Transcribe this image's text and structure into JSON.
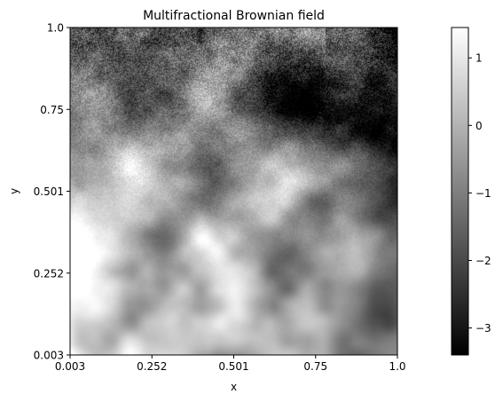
{
  "chart_data": {
    "type": "heatmap",
    "title": "Multifractional Brownian field",
    "xlabel": "x",
    "ylabel": "y",
    "xlim": [
      0.003,
      1.0
    ],
    "ylim": [
      0.003,
      1.0
    ],
    "x_ticks": [
      "0.003",
      "0.252",
      "0.501",
      "0.75",
      "1.0"
    ],
    "y_ticks": [
      "0.003",
      "0.252",
      "0.501",
      "0.75",
      "1.0"
    ],
    "colormap": "gray",
    "colorbar": {
      "range": [
        -3.4,
        1.45
      ],
      "ticks": [
        1,
        0,
        -1,
        -2,
        -3
      ],
      "tick_labels": [
        "1",
        "0",
        "−1",
        "−2",
        "−3"
      ]
    },
    "field_description": "Rough texture near y=1 becoming smoother toward y=0; bright region at lower-left, darker toward the right edge.",
    "hurst_trend": "increasing from top to bottom"
  }
}
